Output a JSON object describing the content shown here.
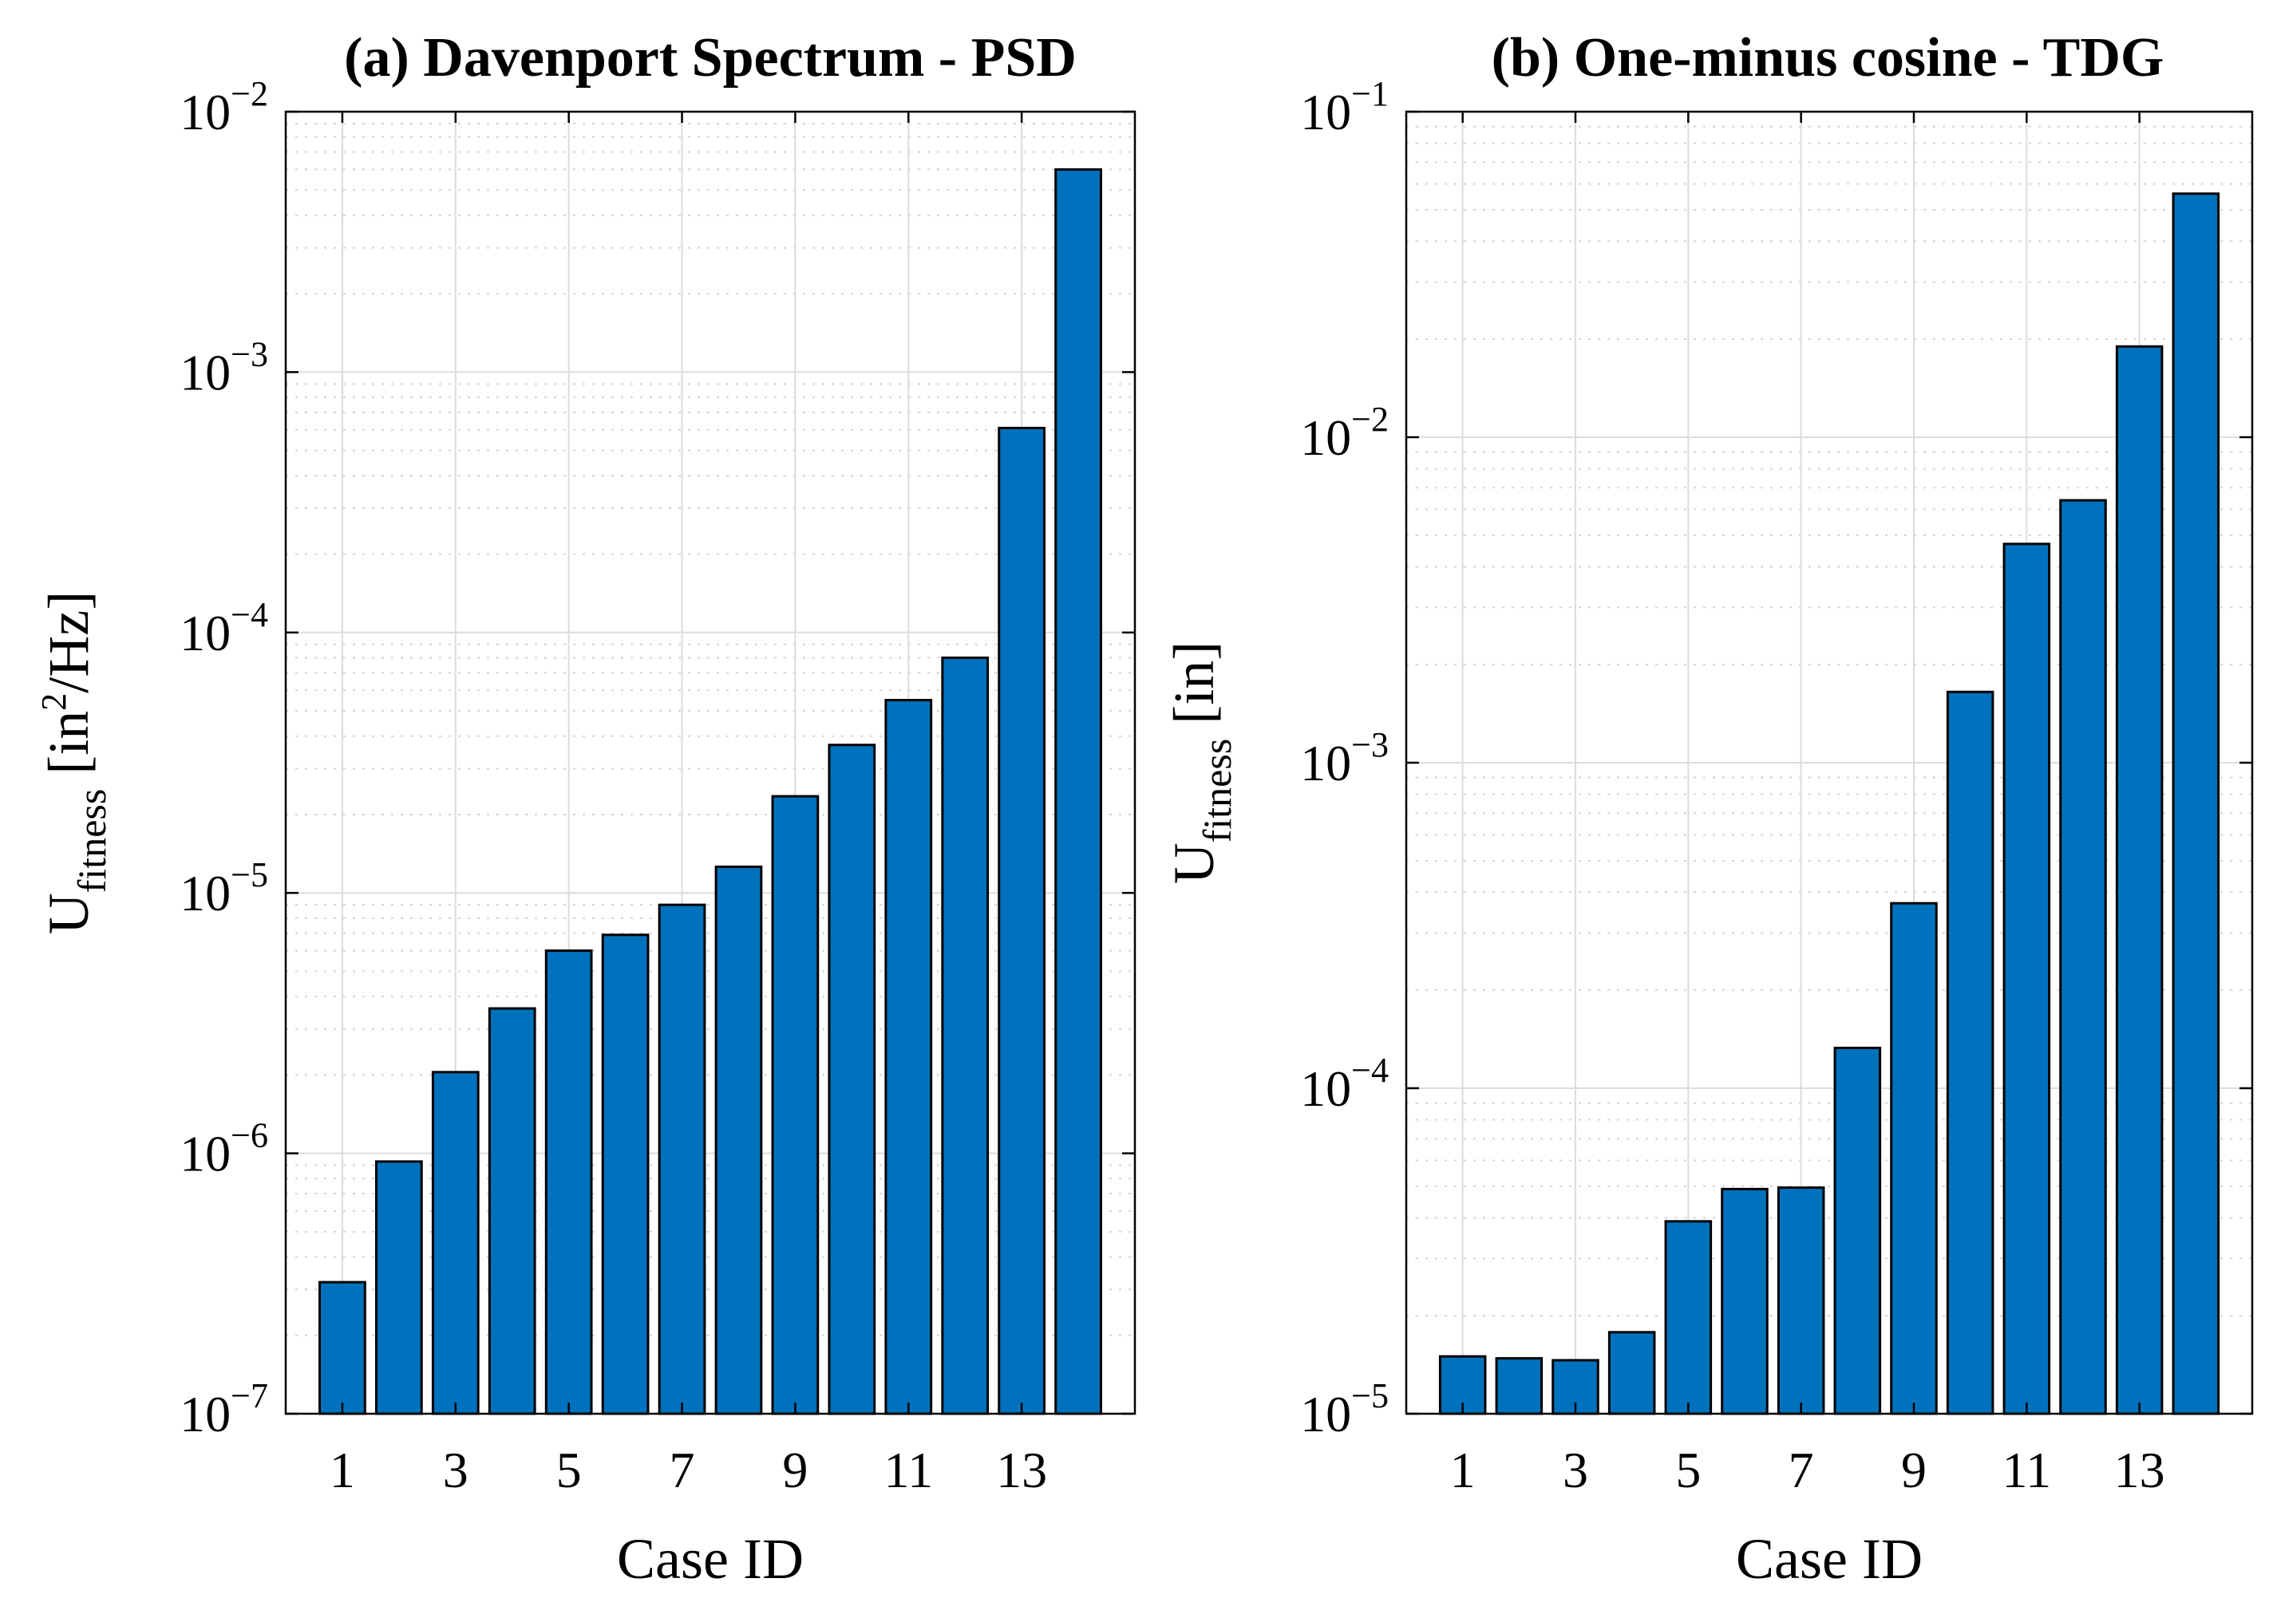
{
  "chart_data": [
    {
      "type": "bar",
      "title": "(a) Davenport Spectrum - PSD",
      "xlabel": "Case ID",
      "ylabel": {
        "base": "U",
        "subscript": "fitness",
        "unit_pre": " [in",
        "unit_sup": "2",
        "unit_post": "/Hz]"
      },
      "yscale": "log",
      "ylim": [
        1e-07,
        0.01
      ],
      "yticks": [
        {
          "base": "10",
          "exp": "−7"
        },
        {
          "base": "10",
          "exp": "−6"
        },
        {
          "base": "10",
          "exp": "−5"
        },
        {
          "base": "10",
          "exp": "−4"
        },
        {
          "base": "10",
          "exp": "−3"
        },
        {
          "base": "10",
          "exp": "−2"
        }
      ],
      "xticks": [
        "1",
        "3",
        "5",
        "7",
        "9",
        "11",
        "13"
      ],
      "categories": [
        1,
        2,
        3,
        4,
        5,
        6,
        7,
        8,
        9,
        10,
        11,
        12,
        13,
        14
      ],
      "values": [
        3.2e-07,
        9.3e-07,
        2.05e-06,
        3.6e-06,
        6e-06,
        6.9e-06,
        9e-06,
        1.26e-05,
        2.35e-05,
        3.7e-05,
        5.5e-05,
        8e-05,
        0.00061,
        0.006
      ],
      "bar_color": "#0072bd",
      "grid": true
    },
    {
      "type": "bar",
      "title": "(b) One-minus cosine - TDG",
      "xlabel": "Case ID",
      "ylabel": {
        "base": "U",
        "subscript": "fitness",
        "unit_pre": " [in]",
        "unit_sup": "",
        "unit_post": ""
      },
      "yscale": "log",
      "ylim": [
        1e-05,
        0.1
      ],
      "yticks": [
        {
          "base": "10",
          "exp": "−5"
        },
        {
          "base": "10",
          "exp": "−4"
        },
        {
          "base": "10",
          "exp": "−3"
        },
        {
          "base": "10",
          "exp": "−2"
        },
        {
          "base": "10",
          "exp": "−1"
        }
      ],
      "xticks": [
        "1",
        "3",
        "5",
        "7",
        "9",
        "11",
        "13"
      ],
      "categories": [
        1,
        2,
        3,
        4,
        5,
        6,
        7,
        8,
        9,
        10,
        11,
        12,
        13,
        14
      ],
      "values": [
        1.5e-05,
        1.48e-05,
        1.46e-05,
        1.78e-05,
        3.9e-05,
        4.9e-05,
        4.95e-05,
        0.000133,
        0.00037,
        0.00165,
        0.0047,
        0.0064,
        0.019,
        0.056
      ],
      "bar_color": "#0072bd",
      "grid": true
    }
  ]
}
